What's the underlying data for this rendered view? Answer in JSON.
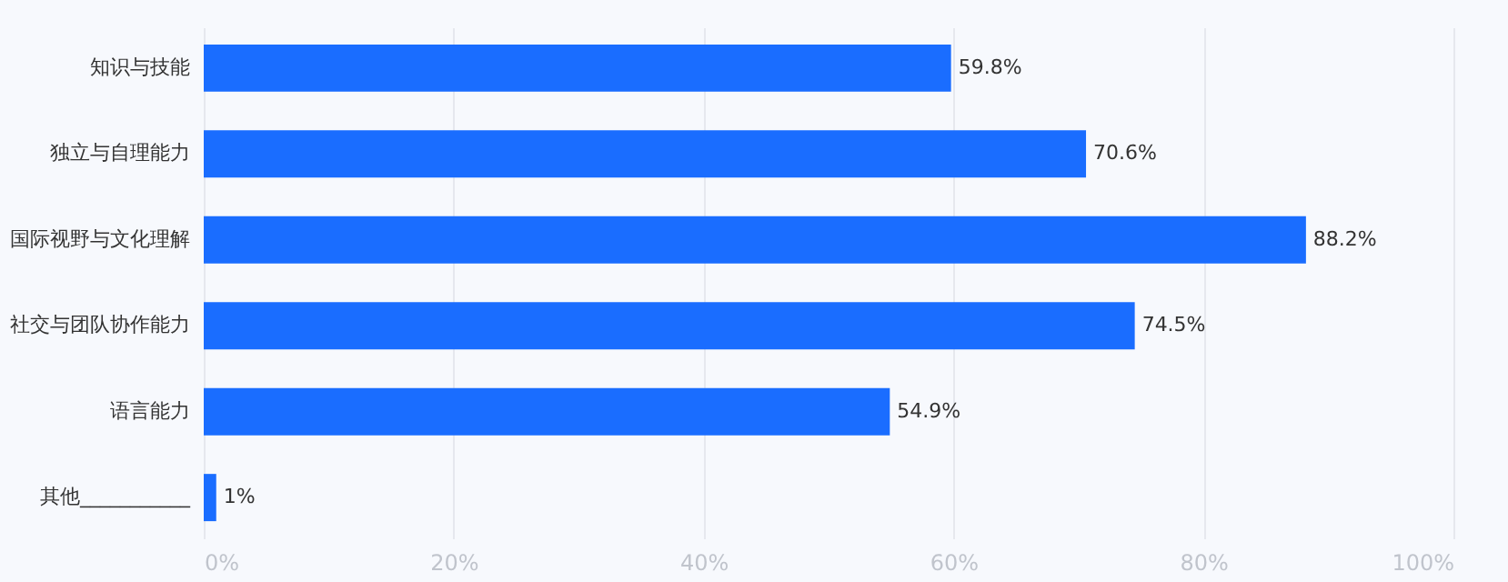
{
  "chart_data": {
    "type": "bar",
    "orientation": "horizontal",
    "categories": [
      "知识与技能",
      "独立与自理能力",
      "国际视野与文化理解",
      "社交与团队协作能力",
      "语言能力",
      "其他___________"
    ],
    "values": [
      59.8,
      70.6,
      88.2,
      74.5,
      54.9,
      1
    ],
    "value_labels": [
      "59.8%",
      "70.6%",
      "88.2%",
      "74.5%",
      "54.9%",
      "1%"
    ],
    "color": "#1a6dff",
    "xlim": [
      0,
      100
    ],
    "xticks": [
      {
        "value": 0,
        "label": "0%"
      },
      {
        "value": 20,
        "label": "20%"
      },
      {
        "value": 40,
        "label": "40%"
      },
      {
        "value": 60,
        "label": "60%"
      },
      {
        "value": 80,
        "label": "80%"
      },
      {
        "value": 100,
        "label": "100%"
      }
    ],
    "grid": "x"
  }
}
